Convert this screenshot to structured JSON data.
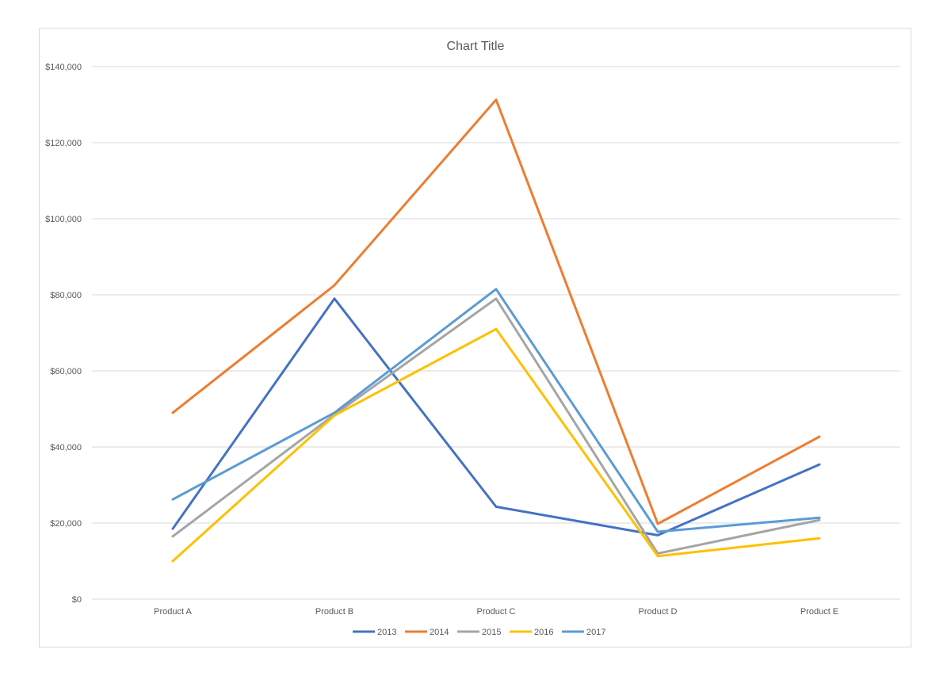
{
  "chart_data": {
    "type": "line",
    "title": "Chart Title",
    "xlabel": "",
    "ylabel": "",
    "categories": [
      "Product A",
      "Product B",
      "Product C",
      "Product D",
      "Product E"
    ],
    "ylim": [
      0,
      140000
    ],
    "y_ticks": [
      "$0",
      "$20,000",
      "$40,000",
      "$60,000",
      "$80,000",
      "$100,000",
      "$120,000",
      "$140,000"
    ],
    "grid": true,
    "legend_position": "bottom",
    "series": [
      {
        "name": "2013",
        "color": "#4472C4",
        "values": [
          18500,
          79000,
          24300,
          16800,
          35400
        ]
      },
      {
        "name": "2014",
        "color": "#ED7D31",
        "values": [
          49000,
          82500,
          131300,
          19800,
          42700
        ]
      },
      {
        "name": "2015",
        "color": "#A5A5A5",
        "values": [
          16500,
          48500,
          79000,
          12000,
          20800
        ]
      },
      {
        "name": "2016",
        "color": "#FFC000",
        "values": [
          10000,
          48300,
          71000,
          11300,
          16000
        ]
      },
      {
        "name": "2017",
        "color": "#5B9BD5",
        "values": [
          26200,
          49000,
          81500,
          17700,
          21400
        ]
      }
    ]
  }
}
